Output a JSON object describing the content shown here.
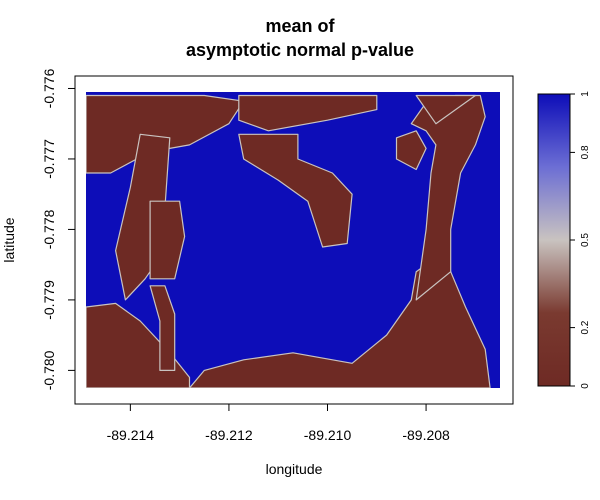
{
  "chart_data": {
    "type": "heatmap",
    "title_lines": [
      "mean of",
      "asymptotic normal p-value"
    ],
    "xlabel": "longitude",
    "ylabel": "latitude",
    "xlim": [
      -89.2149,
      -89.2065
    ],
    "ylim": [
      -0.78025,
      -0.77605
    ],
    "x_ticks": [
      {
        "value": -89.214,
        "label": "-89.214"
      },
      {
        "value": -89.212,
        "label": "-89.212"
      },
      {
        "value": -89.21,
        "label": "-89.210"
      },
      {
        "value": -89.208,
        "label": "-89.208"
      }
    ],
    "y_ticks": [
      {
        "value": -0.776,
        "label": "-0.776"
      },
      {
        "value": -0.777,
        "label": "-0.777"
      },
      {
        "value": -0.778,
        "label": "-0.778"
      },
      {
        "value": -0.779,
        "label": "-0.779"
      },
      {
        "value": -0.78,
        "label": "-0.780"
      }
    ],
    "colorbar": {
      "range": [
        0,
        1
      ],
      "ticks": [
        {
          "value": 0,
          "label": "0"
        },
        {
          "value": 0.2,
          "label": "0.2"
        },
        {
          "value": 0.5,
          "label": "0.5"
        },
        {
          "value": 0.8,
          "label": "0.8"
        },
        {
          "value": 1,
          "label": "1"
        }
      ],
      "colors": [
        "#6e2a24",
        "#7a3a30",
        "#c9c3c0",
        "#6c6ed4",
        "#0d0db8"
      ]
    },
    "grid": false,
    "low_value_regions": [
      {
        "name": "top-left-band",
        "points": [
          [
            -89.2149,
            -0.7761
          ],
          [
            -89.2125,
            -0.7761
          ],
          [
            -89.2117,
            -0.77618
          ],
          [
            -89.212,
            -0.7765
          ],
          [
            -89.2128,
            -0.7768
          ],
          [
            -89.2136,
            -0.7769
          ],
          [
            -89.2144,
            -0.7772
          ],
          [
            -89.2149,
            -0.7772
          ]
        ]
      },
      {
        "name": "top-center-blob",
        "points": [
          [
            -89.2118,
            -0.7761
          ],
          [
            -89.209,
            -0.7761
          ],
          [
            -89.209,
            -0.7763
          ],
          [
            -89.21,
            -0.77645
          ],
          [
            -89.2112,
            -0.7766
          ],
          [
            -89.2118,
            -0.77645
          ]
        ]
      },
      {
        "name": "left-strand",
        "points": [
          [
            -89.2138,
            -0.77665
          ],
          [
            -89.2132,
            -0.7767
          ],
          [
            -89.2133,
            -0.7777
          ],
          [
            -89.213,
            -0.778
          ],
          [
            -89.2137,
            -0.7787
          ],
          [
            -89.2141,
            -0.779
          ],
          [
            -89.2143,
            -0.7783
          ],
          [
            -89.214,
            -0.7774
          ]
        ]
      },
      {
        "name": "left-middle-strand",
        "points": [
          [
            -89.2136,
            -0.7776
          ],
          [
            -89.213,
            -0.7776
          ],
          [
            -89.2129,
            -0.7781
          ],
          [
            -89.2131,
            -0.7787
          ],
          [
            -89.2136,
            -0.7787
          ]
        ]
      },
      {
        "name": "center-curve",
        "points": [
          [
            -89.2118,
            -0.77665
          ],
          [
            -89.2106,
            -0.77665
          ],
          [
            -89.2106,
            -0.777
          ],
          [
            -89.2099,
            -0.7772
          ],
          [
            -89.2095,
            -0.7775
          ],
          [
            -89.2096,
            -0.7782
          ],
          [
            -89.2101,
            -0.77825
          ],
          [
            -89.2104,
            -0.7776
          ],
          [
            -89.211,
            -0.7773
          ],
          [
            -89.2117,
            -0.777
          ]
        ]
      },
      {
        "name": "left-lower-strands",
        "points": [
          [
            -89.2149,
            -0.7791
          ],
          [
            -89.2143,
            -0.77905
          ],
          [
            -89.2138,
            -0.7793
          ],
          [
            -89.2132,
            -0.77975
          ],
          [
            -89.2128,
            -0.7801
          ],
          [
            -89.2128,
            -0.78025
          ],
          [
            -89.2149,
            -0.78025
          ]
        ]
      },
      {
        "name": "mid-lower-strand",
        "points": [
          [
            -89.2136,
            -0.7788
          ],
          [
            -89.2133,
            -0.7788
          ],
          [
            -89.2131,
            -0.7792
          ],
          [
            -89.2131,
            -0.78
          ],
          [
            -89.2134,
            -0.78
          ],
          [
            -89.2134,
            -0.7793
          ]
        ]
      },
      {
        "name": "bottom-band",
        "points": [
          [
            -89.2128,
            -0.78025
          ],
          [
            -89.2067,
            -0.78025
          ],
          [
            -89.2068,
            -0.7797
          ],
          [
            -89.2072,
            -0.7791
          ],
          [
            -89.2075,
            -0.7786
          ],
          [
            -89.2078,
            -0.7784
          ],
          [
            -89.2082,
            -0.7786
          ],
          [
            -89.2083,
            -0.779
          ],
          [
            -89.2088,
            -0.7795
          ],
          [
            -89.2095,
            -0.7799
          ],
          [
            -89.2107,
            -0.77975
          ],
          [
            -89.2117,
            -0.77985
          ],
          [
            -89.2125,
            -0.78
          ]
        ]
      },
      {
        "name": "right-plume",
        "points": [
          [
            -89.2082,
            -0.779
          ],
          [
            -89.208,
            -0.778
          ],
          [
            -89.2079,
            -0.7772
          ],
          [
            -89.2078,
            -0.7768
          ],
          [
            -89.208,
            -0.7766
          ],
          [
            -89.2083,
            -0.7765
          ],
          [
            -89.208,
            -0.7762
          ],
          [
            -89.2074,
            -0.7761
          ],
          [
            -89.2069,
            -0.7761
          ],
          [
            -89.2068,
            -0.7764
          ],
          [
            -89.207,
            -0.7768
          ],
          [
            -89.2073,
            -0.7772
          ],
          [
            -89.2075,
            -0.778
          ],
          [
            -89.2075,
            -0.7786
          ]
        ]
      },
      {
        "name": "right-small-blob",
        "points": [
          [
            -89.2086,
            -0.7767
          ],
          [
            -89.2082,
            -0.7766
          ],
          [
            -89.208,
            -0.77685
          ],
          [
            -89.2082,
            -0.77715
          ],
          [
            -89.2086,
            -0.777
          ]
        ]
      },
      {
        "name": "top-right-strand",
        "points": [
          [
            -89.2082,
            -0.7761
          ],
          [
            -89.207,
            -0.7761
          ],
          [
            -89.2074,
            -0.7763
          ],
          [
            -89.2078,
            -0.7765
          ]
        ]
      }
    ]
  }
}
